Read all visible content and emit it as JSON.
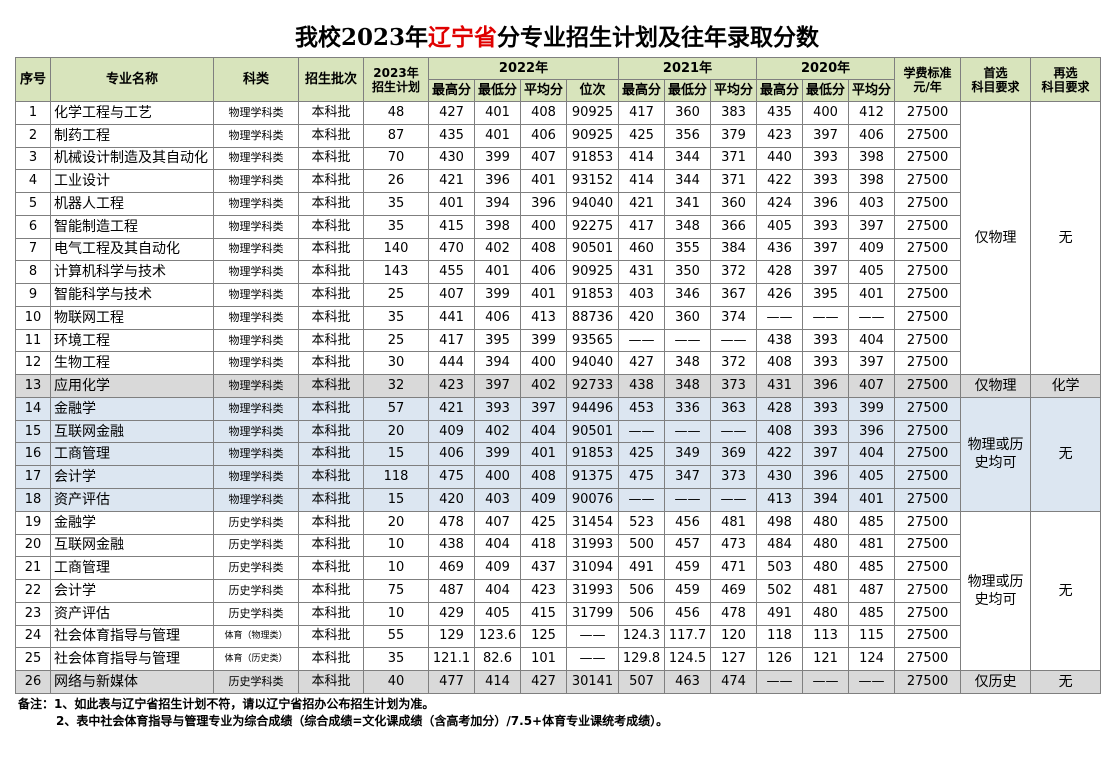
{
  "title": {
    "prefix": "我校2023年",
    "highlight": "辽宁省",
    "suffix": "分专业招生计划及往年录取分数"
  },
  "table": {
    "header": {
      "lead": [
        "序号",
        "专业名称",
        "科类",
        "招生批次",
        "2023年\n招生计划"
      ],
      "years": [
        {
          "label": "2022年",
          "sub": [
            "最高分",
            "最低分",
            "平均分",
            "位次"
          ]
        },
        {
          "label": "2021年",
          "sub": [
            "最高分",
            "最低分",
            "平均分"
          ]
        },
        {
          "label": "2020年",
          "sub": [
            "最高分",
            "最低分",
            "平均分"
          ]
        }
      ],
      "tail": [
        "学费标准\n元/年",
        "首选\n科目要求",
        "再选\n科目要求"
      ]
    },
    "groups": [
      {
        "first": "仅物理",
        "second": "无",
        "rows": [
          [
            "1",
            "化学工程与工艺",
            "物理学科类",
            "本科批",
            "48",
            "427",
            "401",
            "408",
            "90925",
            "417",
            "360",
            "383",
            "435",
            "400",
            "412",
            "27500"
          ],
          [
            "2",
            "制药工程",
            "物理学科类",
            "本科批",
            "87",
            "435",
            "401",
            "406",
            "90925",
            "425",
            "356",
            "379",
            "423",
            "397",
            "406",
            "27500"
          ],
          [
            "3",
            "机械设计制造及其自动化",
            "物理学科类",
            "本科批",
            "70",
            "430",
            "399",
            "407",
            "91853",
            "414",
            "344",
            "371",
            "440",
            "393",
            "398",
            "27500"
          ],
          [
            "4",
            "工业设计",
            "物理学科类",
            "本科批",
            "26",
            "421",
            "396",
            "401",
            "93152",
            "414",
            "344",
            "371",
            "422",
            "393",
            "398",
            "27500"
          ],
          [
            "5",
            "机器人工程",
            "物理学科类",
            "本科批",
            "35",
            "401",
            "394",
            "396",
            "94040",
            "421",
            "341",
            "360",
            "424",
            "396",
            "403",
            "27500"
          ],
          [
            "6",
            "智能制造工程",
            "物理学科类",
            "本科批",
            "35",
            "415",
            "398",
            "400",
            "92275",
            "417",
            "348",
            "366",
            "405",
            "393",
            "397",
            "27500"
          ],
          [
            "7",
            "电气工程及其自动化",
            "物理学科类",
            "本科批",
            "140",
            "470",
            "402",
            "408",
            "90501",
            "460",
            "355",
            "384",
            "436",
            "397",
            "409",
            "27500"
          ],
          [
            "8",
            "计算机科学与技术",
            "物理学科类",
            "本科批",
            "143",
            "455",
            "401",
            "406",
            "90925",
            "431",
            "350",
            "372",
            "428",
            "397",
            "405",
            "27500"
          ],
          [
            "9",
            "智能科学与技术",
            "物理学科类",
            "本科批",
            "25",
            "407",
            "399",
            "401",
            "91853",
            "403",
            "346",
            "367",
            "426",
            "395",
            "401",
            "27500"
          ],
          [
            "10",
            "物联网工程",
            "物理学科类",
            "本科批",
            "35",
            "441",
            "406",
            "413",
            "88736",
            "420",
            "360",
            "374",
            "——",
            "——",
            "——",
            "27500"
          ],
          [
            "11",
            "环境工程",
            "物理学科类",
            "本科批",
            "25",
            "417",
            "395",
            "399",
            "93565",
            "——",
            "——",
            "——",
            "438",
            "393",
            "404",
            "27500"
          ],
          [
            "12",
            "生物工程",
            "物理学科类",
            "本科批",
            "30",
            "444",
            "394",
            "400",
            "94040",
            "427",
            "348",
            "372",
            "408",
            "393",
            "397",
            "27500"
          ]
        ]
      },
      {
        "first": "仅物理",
        "second": "化学",
        "rows": [
          [
            "13",
            "应用化学",
            "物理学科类",
            "本科批",
            "32",
            "423",
            "397",
            "402",
            "92733",
            "438",
            "348",
            "373",
            "431",
            "396",
            "407",
            "27500"
          ]
        ]
      },
      {
        "first": "物理或历史均可",
        "second": "无",
        "rows": [
          [
            "14",
            "金融学",
            "物理学科类",
            "本科批",
            "57",
            "421",
            "393",
            "397",
            "94496",
            "453",
            "336",
            "363",
            "428",
            "393",
            "399",
            "27500"
          ],
          [
            "15",
            "互联网金融",
            "物理学科类",
            "本科批",
            "20",
            "409",
            "402",
            "404",
            "90501",
            "——",
            "——",
            "——",
            "408",
            "393",
            "396",
            "27500"
          ],
          [
            "16",
            "工商管理",
            "物理学科类",
            "本科批",
            "15",
            "406",
            "399",
            "401",
            "91853",
            "425",
            "349",
            "369",
            "422",
            "397",
            "404",
            "27500"
          ],
          [
            "17",
            "会计学",
            "物理学科类",
            "本科批",
            "118",
            "475",
            "400",
            "408",
            "91375",
            "475",
            "347",
            "373",
            "430",
            "396",
            "405",
            "27500"
          ],
          [
            "18",
            "资产评估",
            "物理学科类",
            "本科批",
            "15",
            "420",
            "403",
            "409",
            "90076",
            "——",
            "——",
            "——",
            "413",
            "394",
            "401",
            "27500"
          ]
        ]
      },
      {
        "first": "物理或历史均可",
        "second": "无",
        "rows": [
          [
            "19",
            "金融学",
            "历史学科类",
            "本科批",
            "20",
            "478",
            "407",
            "425",
            "31454",
            "523",
            "456",
            "481",
            "498",
            "480",
            "485",
            "27500"
          ],
          [
            "20",
            "互联网金融",
            "历史学科类",
            "本科批",
            "10",
            "438",
            "404",
            "418",
            "31993",
            "500",
            "457",
            "473",
            "484",
            "480",
            "481",
            "27500"
          ],
          [
            "21",
            "工商管理",
            "历史学科类",
            "本科批",
            "10",
            "469",
            "409",
            "437",
            "31094",
            "491",
            "459",
            "471",
            "503",
            "480",
            "485",
            "27500"
          ],
          [
            "22",
            "会计学",
            "历史学科类",
            "本科批",
            "75",
            "487",
            "404",
            "423",
            "31993",
            "506",
            "459",
            "469",
            "502",
            "481",
            "487",
            "27500"
          ],
          [
            "23",
            "资产评估",
            "历史学科类",
            "本科批",
            "10",
            "429",
            "405",
            "415",
            "31799",
            "506",
            "456",
            "478",
            "491",
            "480",
            "485",
            "27500"
          ],
          [
            "24",
            "社会体育指导与管理",
            "体育（物理类）",
            "本科批",
            "55",
            "129",
            "123.6",
            "125",
            "——",
            "124.3",
            "117.7",
            "120",
            "118",
            "113",
            "115",
            "27500"
          ],
          [
            "25",
            "社会体育指导与管理",
            "体育（历史类）",
            "本科批",
            "35",
            "121.1",
            "82.6",
            "101",
            "——",
            "129.8",
            "124.5",
            "127",
            "126",
            "121",
            "124",
            "27500"
          ]
        ]
      },
      {
        "first": "仅历史",
        "second": "无",
        "rows": [
          [
            "26",
            "网络与新媒体",
            "历史学科类",
            "本科批",
            "40",
            "477",
            "414",
            "427",
            "30141",
            "507",
            "463",
            "474",
            "——",
            "——",
            "——",
            "27500"
          ]
        ]
      }
    ]
  },
  "notes": {
    "label": "备注：",
    "items": [
      "1、如此表与辽宁省招生计划不符，请以辽宁省招办公布招生计划为准。",
      "2、表中社会体育指导与管理专业为综合成绩（综合成绩=文化课成绩（含高考加分）/7.5+体育专业课统考成绩）。"
    ]
  }
}
